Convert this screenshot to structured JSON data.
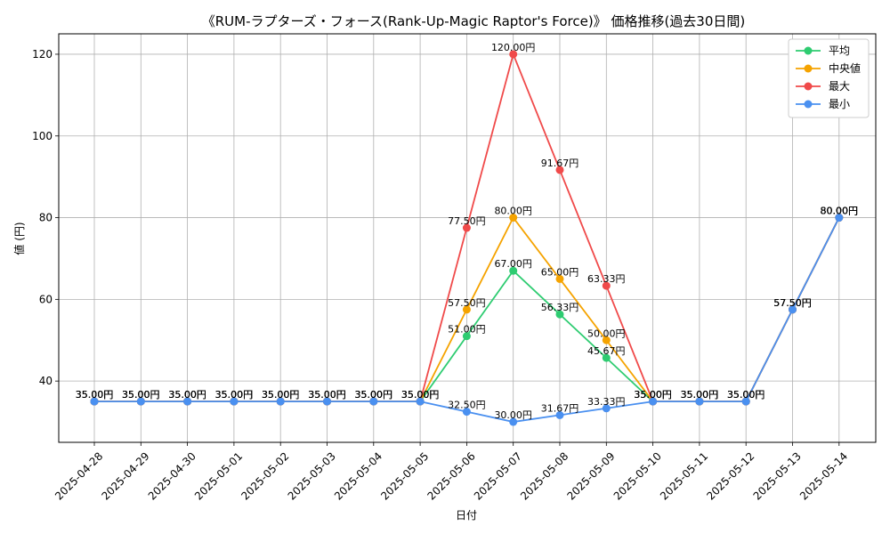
{
  "chart_data": {
    "type": "line",
    "title": "《RUM-ラプターズ・フォース(Rank-Up-Magic Raptor's Force)》 価格推移(過去30日間)",
    "xlabel": "日付",
    "ylabel": "値 (円)",
    "categories": [
      "2025-04-28",
      "2025-04-29",
      "2025-04-30",
      "2025-05-01",
      "2025-05-02",
      "2025-05-03",
      "2025-05-04",
      "2025-05-05",
      "2025-05-06",
      "2025-05-07",
      "2025-05-08",
      "2025-05-09",
      "2025-05-10",
      "2025-05-11",
      "2025-05-12",
      "2025-05-13",
      "2025-05-14"
    ],
    "ylim": [
      25,
      125
    ],
    "yticks": [
      40,
      60,
      80,
      100,
      120
    ],
    "grid": true,
    "legend_position": "top-right",
    "value_suffix": "円",
    "series": [
      {
        "name": "平均",
        "color": "#2ecc71",
        "values": [
          35,
          35,
          35,
          35,
          35,
          35,
          35,
          35,
          51,
          67,
          56.33,
          45.67,
          35,
          35,
          35,
          57.5,
          80
        ]
      },
      {
        "name": "中央値",
        "color": "#f5a300",
        "values": [
          35,
          35,
          35,
          35,
          35,
          35,
          35,
          35,
          57.5,
          80,
          65,
          50,
          35,
          35,
          35,
          57.5,
          80
        ]
      },
      {
        "name": "最大",
        "color": "#f04a4a",
        "values": [
          35,
          35,
          35,
          35,
          35,
          35,
          35,
          35,
          77.5,
          120,
          91.67,
          63.33,
          35,
          35,
          35,
          57.5,
          80
        ]
      },
      {
        "name": "最小",
        "color": "#4a90f0",
        "values": [
          35,
          35,
          35,
          35,
          35,
          35,
          35,
          35,
          32.5,
          30,
          31.67,
          33.33,
          35,
          35,
          35,
          57.5,
          80
        ]
      }
    ]
  }
}
